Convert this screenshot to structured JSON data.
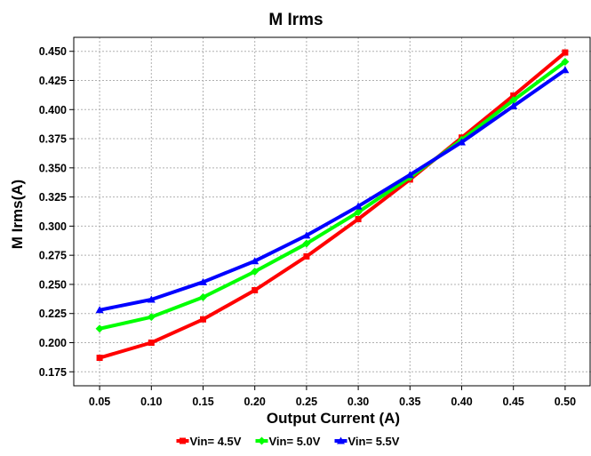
{
  "chart_data": {
    "type": "line",
    "title": "M Irms",
    "xlabel": "Output Current (A)",
    "ylabel": "M Irms(A)",
    "x": [
      0.05,
      0.1,
      0.15,
      0.2,
      0.25,
      0.3,
      0.35,
      0.4,
      0.45,
      0.5
    ],
    "x_tick_labels": [
      "0.05",
      "0.10",
      "0.15",
      "0.20",
      "0.25",
      "0.30",
      "0.35",
      "0.40",
      "0.45",
      "0.50"
    ],
    "y_tick_labels": [
      "0.175",
      "0.200",
      "0.225",
      "0.250",
      "0.275",
      "0.300",
      "0.325",
      "0.350",
      "0.375",
      "0.400",
      "0.425",
      "0.450"
    ],
    "y_ticks": [
      0.175,
      0.2,
      0.225,
      0.25,
      0.275,
      0.3,
      0.325,
      0.35,
      0.375,
      0.4,
      0.425,
      0.45
    ],
    "xlim": [
      0.025,
      0.525
    ],
    "ylim": [
      0.163,
      0.462
    ],
    "grid": true,
    "legend_position": "bottom",
    "series": [
      {
        "name": "Vin= 4.5V",
        "color": "#ff0000",
        "marker": "square",
        "values": [
          0.187,
          0.2,
          0.22,
          0.245,
          0.274,
          0.306,
          0.34,
          0.376,
          0.412,
          0.449
        ]
      },
      {
        "name": "Vin= 5.0V",
        "color": "#00ff00",
        "marker": "diamond",
        "values": [
          0.212,
          0.222,
          0.239,
          0.261,
          0.285,
          0.312,
          0.342,
          0.374,
          0.408,
          0.441
        ]
      },
      {
        "name": "Vin= 5.5V",
        "color": "#0000ff",
        "marker": "triangle",
        "values": [
          0.228,
          0.237,
          0.252,
          0.27,
          0.292,
          0.317,
          0.344,
          0.372,
          0.403,
          0.434
        ]
      }
    ]
  }
}
